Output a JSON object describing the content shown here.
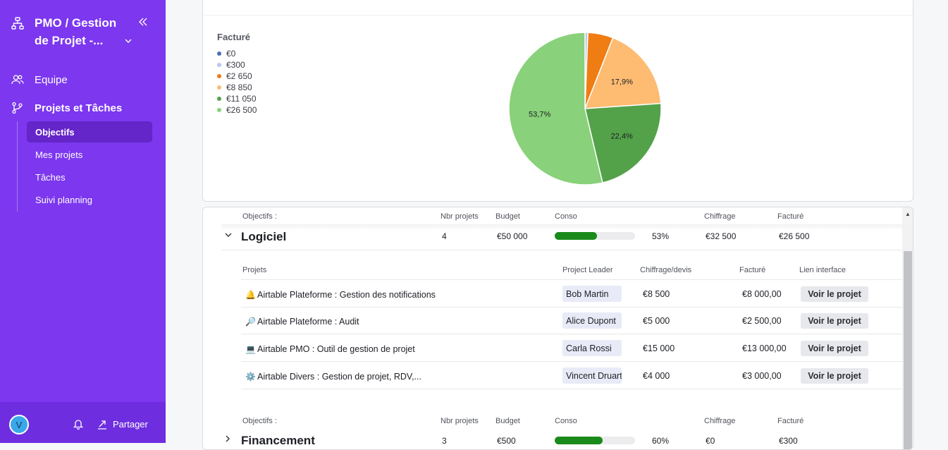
{
  "sidebar": {
    "title": "PMO / Gestion de Projet -...",
    "nav": [
      {
        "label": "Equipe"
      },
      {
        "label": "Projets et Tâches"
      }
    ],
    "subnav": [
      {
        "label": "Objectifs",
        "active": true
      },
      {
        "label": "Mes projets"
      },
      {
        "label": "Tâches"
      },
      {
        "label": "Suivi planning"
      }
    ],
    "footer": {
      "avatar": "V",
      "share_label": "Partager"
    }
  },
  "chart_data": {
    "type": "pie",
    "legend_title": "Facturé",
    "legend_placement": "top-left",
    "slices": [
      {
        "label": "€0",
        "value": 0,
        "color": "#4e6fb3"
      },
      {
        "label": "€300",
        "value": 300,
        "color": "#b7c8ef"
      },
      {
        "label": "€2 650",
        "value": 2650,
        "color": "#ef7d14"
      },
      {
        "label": "€8 850",
        "value": 8850,
        "color": "#fdbc72"
      },
      {
        "label": "€11 050",
        "value": 11050,
        "color": "#53a24a"
      },
      {
        "label": "€26 500",
        "value": 26500,
        "color": "#89d17a"
      }
    ],
    "data_labels": [
      {
        "slice": "€8 850",
        "text": "17,9%"
      },
      {
        "slice": "€11 050",
        "text": "22,4%"
      },
      {
        "slice": "€26 500",
        "text": "53,7%"
      }
    ]
  },
  "headers": {
    "objectifs": "Objectifs :",
    "nbr_projets": "Nbr projets",
    "budget": "Budget",
    "conso": "Conso",
    "chiffrage": "Chiffrage",
    "facture": "Facturé"
  },
  "project_headers": {
    "projets": "Projets",
    "leader": "Project Leader",
    "chiffrage_devis": "Chiffrage/devis",
    "facture": "Facturé",
    "lien": "Lien interface"
  },
  "groups": [
    {
      "title": "Logiciel",
      "nbr_projets": "4",
      "budget": "€50 000",
      "conso_fraction": 0.53,
      "conso": "53%",
      "chiffrage": "€32 500",
      "facture": "€26 500",
      "projects": [
        {
          "emoji": "🔔",
          "name": "Airtable Plateforme : Gestion des notifications",
          "leader": "Bob Martin",
          "chiffrage": "€8 500",
          "facture": "€8 000,00",
          "link": "Voir le projet"
        },
        {
          "emoji": "🔎",
          "name": "Airtable Plateforme : Audit",
          "leader": "Alice Dupont",
          "chiffrage": "€5 000",
          "facture": "€2 500,00",
          "link": "Voir le projet"
        },
        {
          "emoji": "💻",
          "name": "Airtable PMO : Outil de gestion de projet",
          "leader": "Carla Rossi",
          "chiffrage": "€15 000",
          "facture": "€13 000,00",
          "link": "Voir le projet"
        },
        {
          "emoji": "⚙️",
          "name": "Airtable Divers : Gestion de projet, RDV,...",
          "leader": "Vincent Druart",
          "chiffrage": "€4 000",
          "facture": "€3 000,00",
          "link": "Voir le projet"
        }
      ]
    },
    {
      "title": "Financement",
      "nbr_projets": "3",
      "budget": "€500",
      "conso_fraction": 0.6,
      "conso": "60%",
      "chiffrage": "€0",
      "facture": "€300"
    }
  ]
}
